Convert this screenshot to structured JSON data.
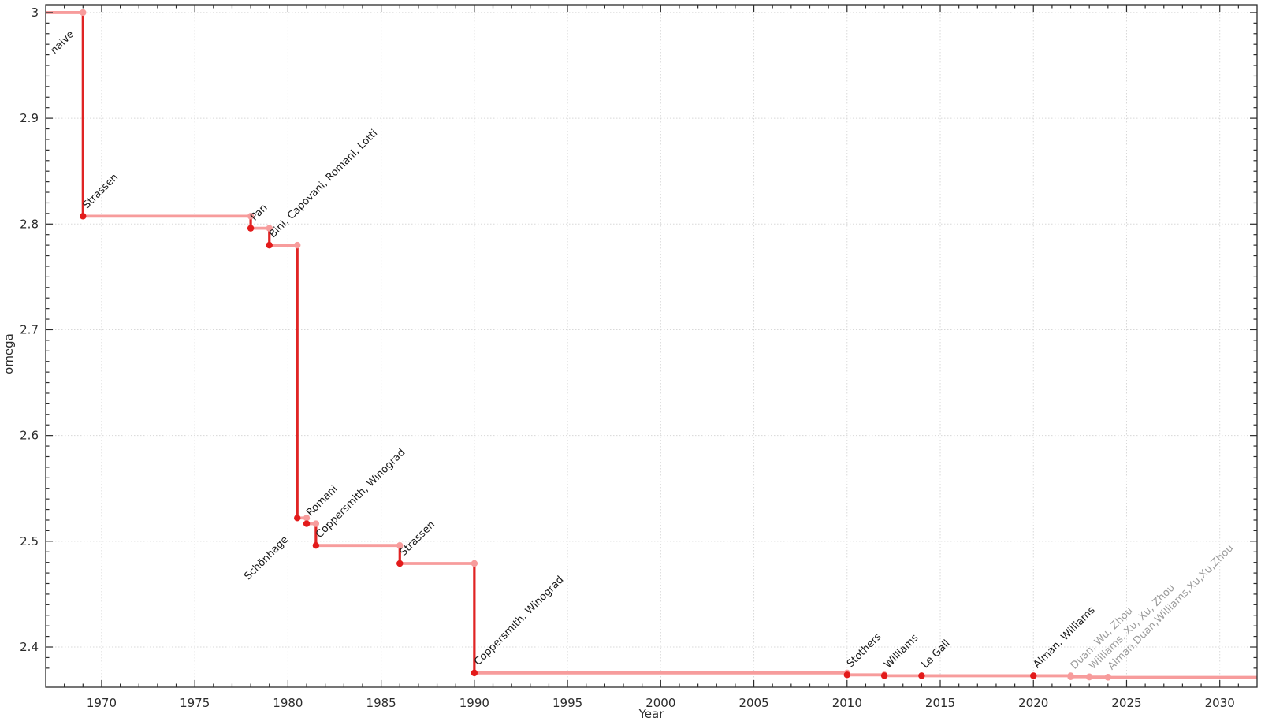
{
  "chart_data": {
    "type": "line",
    "step_style": "post",
    "title": "",
    "xlabel": "Year",
    "ylabel": "omega",
    "xlim": [
      1967,
      2032
    ],
    "ylim": [
      2.362,
      3.0074
    ],
    "x_major_ticks": [
      1970,
      1975,
      1980,
      1985,
      1990,
      1995,
      2000,
      2005,
      2010,
      2015,
      2020,
      2025,
      2030
    ],
    "x_major_labels": [
      "1970",
      "1975",
      "1980",
      "1985",
      "1990",
      "1995",
      "2000",
      "2005",
      "2010",
      "2015",
      "2020",
      "2025",
      "2030"
    ],
    "x_minor_step": 1,
    "y_major_ticks": [
      2.4,
      2.5,
      2.6,
      2.7,
      2.8,
      2.9,
      3.0
    ],
    "y_major_labels": [
      "2.4",
      "2.5",
      "2.6",
      "2.7",
      "2.8",
      "2.9",
      "3"
    ],
    "y_minor_step": 0.01,
    "grid": "dotted-majors",
    "legend": "none",
    "colors": {
      "record_line": "#e02424",
      "record_dot": "#e31b1b",
      "hold_line": "#f79c9c",
      "hold_dot": "#f79c9c",
      "label_text": "#1a1a1a",
      "label_text_muted": "#9b9b9b",
      "grid": "#d8d8d8",
      "axis": "#2b2b2b"
    },
    "initial": {
      "omega": 3,
      "label": "naive",
      "label_side": "below"
    },
    "records": [
      {
        "year": 1969,
        "omega": 2.8074,
        "label": "Strassen"
      },
      {
        "year": 1978,
        "omega": 2.796,
        "label": "Pan"
      },
      {
        "year": 1979,
        "omega": 2.78,
        "label": "Bini, Capovani, Romani, Lotti"
      },
      {
        "year": 1980.5,
        "omega": 2.522,
        "label": "Schönhage",
        "label_side": "below"
      },
      {
        "year": 1981,
        "omega": 2.5166,
        "label": "Romani"
      },
      {
        "year": 1981.5,
        "omega": 2.496,
        "label": "Coppersmith, Winograd"
      },
      {
        "year": 1986,
        "omega": 2.479,
        "label": "Strassen"
      },
      {
        "year": 1990,
        "omega": 2.3755,
        "label": "Coppersmith, Winograd"
      },
      {
        "year": 2010,
        "omega": 2.3737,
        "label": "Stothers"
      },
      {
        "year": 2012,
        "omega": 2.3729,
        "label": "Williams"
      },
      {
        "year": 2014,
        "omega": 2.3728639,
        "label": "Le Gall"
      },
      {
        "year": 2020,
        "omega": 2.3728596,
        "label": "Alman, Williams"
      },
      {
        "year": 2022,
        "omega": 2.371866,
        "label": "Duan, Wu, Zhou",
        "muted": true
      },
      {
        "year": 2023,
        "omega": 2.371552,
        "label": "Williams, Xu, Xu, Zhou",
        "muted": true
      },
      {
        "year": 2024,
        "omega": 2.371339,
        "label": "Alman,Duan,Williams,Xu,Xu,Zhou",
        "muted": true
      }
    ]
  }
}
